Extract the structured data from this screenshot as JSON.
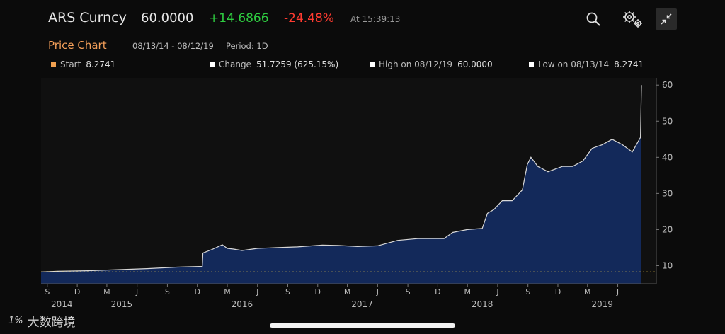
{
  "header": {
    "ticker": "ARS Curncy",
    "price": "60.0000",
    "change": "+14.6866",
    "change_pct": "-24.48%",
    "time": "At 15:39:13"
  },
  "toolbar": {
    "search_icon": "search-icon",
    "settings_icon": "gear-icon",
    "collapse_icon": "collapse-icon"
  },
  "subheader": {
    "title": "Price Chart",
    "range": "08/13/14 - 08/12/19",
    "period": "Period: 1D"
  },
  "stats": [
    {
      "label": "Start",
      "value": "8.2741",
      "color": "#f0a050"
    },
    {
      "label": "Change",
      "value": "51.7259 (625.15%)",
      "color": "#ffffff"
    },
    {
      "label": "High on 08/12/19",
      "value": "60.0000",
      "color": "#ffffff"
    },
    {
      "label": "Low on 08/13/14",
      "value": "8.2741",
      "color": "#ffffff"
    }
  ],
  "watermark": {
    "logo": "1%",
    "text": "大数跨境"
  },
  "colors": {
    "area_fill": "#13295a",
    "line": "#d8d8d8",
    "dotted": "#e8c44a",
    "positive": "#2ecc40",
    "negative": "#ff3b30",
    "accent": "#f5a05a"
  },
  "chart_data": {
    "type": "area",
    "title": "Price Chart",
    "x": [
      "2014-08-13",
      "2014-10-01",
      "2015-01-01",
      "2015-04-01",
      "2015-07-01",
      "2015-10-01",
      "2015-12-16",
      "2015-12-18",
      "2016-01-15",
      "2016-02-15",
      "2016-03-01",
      "2016-03-20",
      "2016-04-15",
      "2016-06-01",
      "2016-08-01",
      "2016-10-01",
      "2016-12-15",
      "2017-02-01",
      "2017-04-01",
      "2017-06-01",
      "2017-08-01",
      "2017-10-01",
      "2017-12-20",
      "2018-01-15",
      "2018-03-01",
      "2018-04-15",
      "2018-05-01",
      "2018-05-20",
      "2018-06-15",
      "2018-07-15",
      "2018-08-15",
      "2018-08-30",
      "2018-09-10",
      "2018-10-01",
      "2018-11-01",
      "2018-12-15",
      "2019-01-15",
      "2019-02-15",
      "2019-03-15",
      "2019-04-15",
      "2019-05-15",
      "2019-06-15",
      "2019-07-15",
      "2019-08-09",
      "2019-08-12"
    ],
    "values": [
      8.27,
      8.45,
      8.6,
      8.9,
      9.2,
      9.6,
      9.8,
      13.5,
      14.5,
      15.8,
      14.8,
      14.6,
      14.2,
      14.8,
      15.0,
      15.2,
      15.7,
      15.6,
      15.3,
      15.5,
      17.0,
      17.5,
      17.5,
      19.2,
      20.0,
      20.3,
      24.5,
      25.5,
      28.0,
      28.0,
      31.0,
      38.0,
      40.0,
      37.5,
      36.0,
      37.5,
      37.5,
      39.0,
      42.5,
      43.5,
      45.0,
      43.5,
      41.5,
      45.5,
      60.0
    ],
    "ylim": [
      5,
      62
    ],
    "y_ticks": [
      10,
      20,
      30,
      40,
      50,
      60
    ],
    "x_month_ticks": [
      {
        "label": "S",
        "date": "2014-09-01"
      },
      {
        "label": "D",
        "date": "2014-12-01"
      },
      {
        "label": "M",
        "date": "2015-03-01"
      },
      {
        "label": "J",
        "date": "2015-06-01"
      },
      {
        "label": "S",
        "date": "2015-09-01"
      },
      {
        "label": "D",
        "date": "2015-12-01"
      },
      {
        "label": "M",
        "date": "2016-03-01"
      },
      {
        "label": "J",
        "date": "2016-06-01"
      },
      {
        "label": "S",
        "date": "2016-09-01"
      },
      {
        "label": "D",
        "date": "2016-12-01"
      },
      {
        "label": "M",
        "date": "2017-03-01"
      },
      {
        "label": "J",
        "date": "2017-06-01"
      },
      {
        "label": "S",
        "date": "2017-09-01"
      },
      {
        "label": "D",
        "date": "2017-12-01"
      },
      {
        "label": "M",
        "date": "2018-03-01"
      },
      {
        "label": "J",
        "date": "2018-06-01"
      },
      {
        "label": "S",
        "date": "2018-09-01"
      },
      {
        "label": "D",
        "date": "2018-12-01"
      },
      {
        "label": "M",
        "date": "2019-03-01"
      },
      {
        "label": "J",
        "date": "2019-06-01"
      }
    ],
    "x_year_ticks": [
      {
        "label": "2014",
        "date": "2014-10-15"
      },
      {
        "label": "2015",
        "date": "2015-04-15"
      },
      {
        "label": "2016",
        "date": "2016-04-15"
      },
      {
        "label": "2017",
        "date": "2017-04-15"
      },
      {
        "label": "2018",
        "date": "2018-04-15"
      },
      {
        "label": "2019",
        "date": "2019-04-15"
      }
    ],
    "reference_line": 8.2741,
    "grid": false
  }
}
